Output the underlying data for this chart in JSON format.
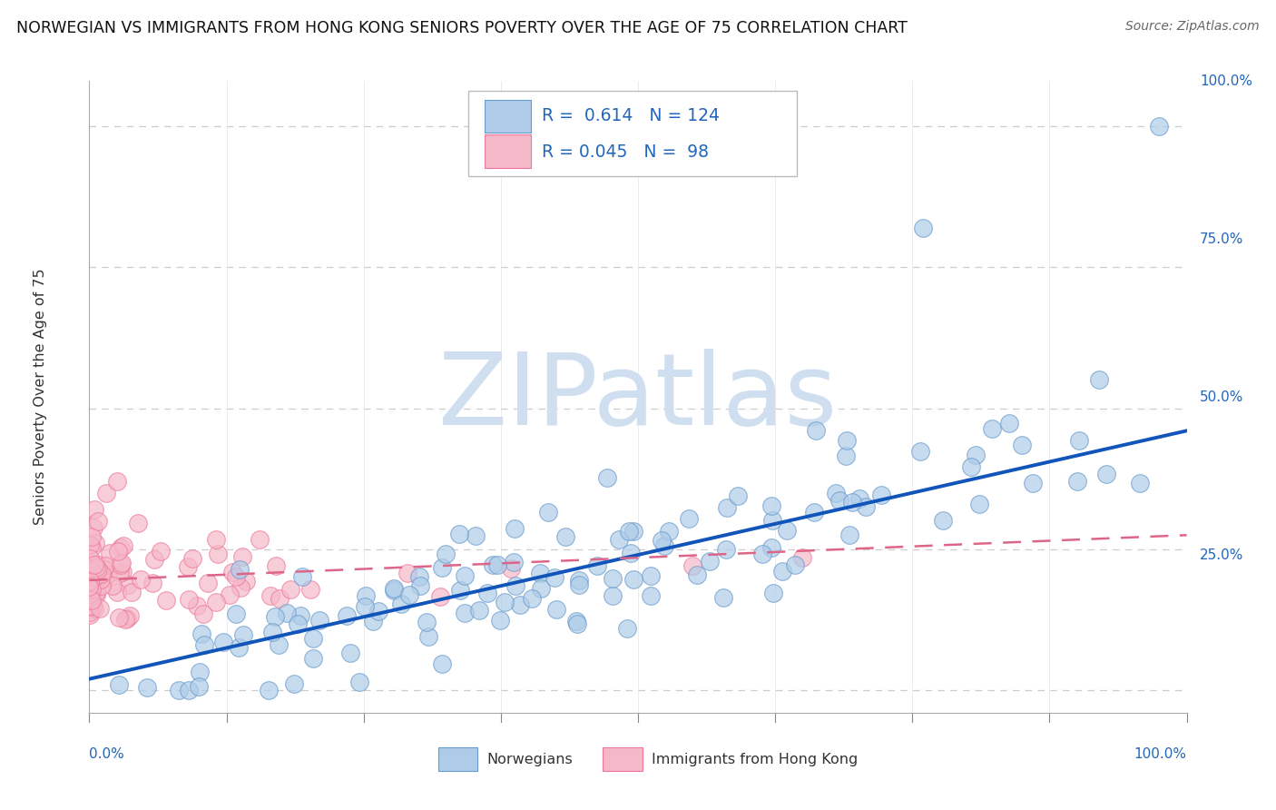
{
  "title": "NORWEGIAN VS IMMIGRANTS FROM HONG KONG SENIORS POVERTY OVER THE AGE OF 75 CORRELATION CHART",
  "source": "Source: ZipAtlas.com",
  "ylabel": "Seniors Poverty Over the Age of 75",
  "legend_blue_label": "R =  0.614   N = 124",
  "legend_pink_label": "R = 0.045   N =  98",
  "legend_blue_color": "#aecce8",
  "legend_pink_color": "#f5b8c8",
  "blue_dot_color": "#aecce8",
  "blue_dot_edge": "#6699cc",
  "pink_dot_color": "#f5b8c8",
  "pink_dot_edge": "#ee7799",
  "blue_line_color": "#1155bb",
  "pink_line_color": "#dd6688",
  "background_color": "#ffffff",
  "grid_color": "#cccccc",
  "watermark_color": "#d0dff0",
  "title_color": "#111111",
  "source_color": "#666666",
  "blue_R": 0.614,
  "blue_N": 124,
  "pink_R": 0.045,
  "pink_N": 98,
  "blue_slope": 0.44,
  "blue_intercept": 0.02,
  "pink_slope": 0.08,
  "pink_intercept": 0.195
}
